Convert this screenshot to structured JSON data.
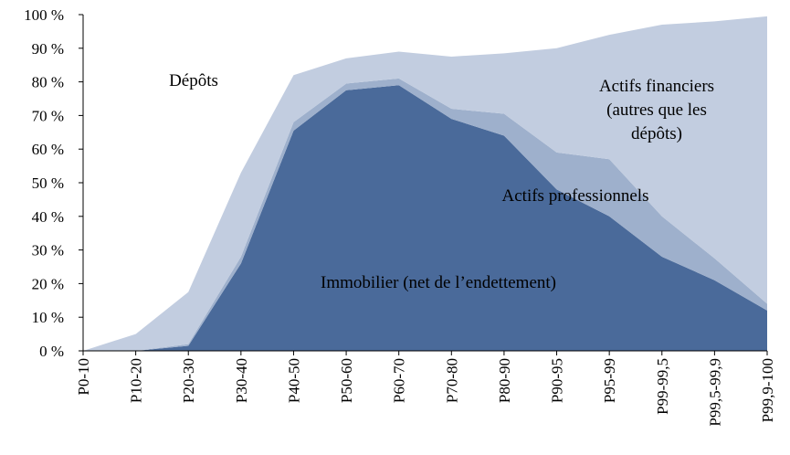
{
  "chart_data": {
    "type": "area",
    "stacked": true,
    "categories": [
      "P0-10",
      "P10-20",
      "P20-30",
      "P30-40",
      "P40-50",
      "P50-60",
      "P60-70",
      "P70-80",
      "P80-90",
      "P90-95",
      "P95-99",
      "P99-99,5",
      "P99,5-99,9",
      "P99,9-100"
    ],
    "ylim": [
      0,
      100
    ],
    "y_ticks": [
      "0 %",
      "10 %",
      "20 %",
      "30 %",
      "40 %",
      "50 %",
      "60 %",
      "70 %",
      "80 %",
      "90 %",
      "100 %"
    ],
    "grid": false,
    "series": [
      {
        "name": "Immobilier (net de l’endettement)",
        "color": "#4a6a9a",
        "values": [
          0,
          0,
          1.5,
          26,
          65.5,
          77.5,
          79,
          69,
          64,
          48,
          40,
          28,
          21,
          12
        ]
      },
      {
        "name": "Actifs professionnels",
        "color": "#9eb0cc",
        "values": [
          0,
          0,
          0.5,
          2,
          2.5,
          2,
          2,
          3,
          6.5,
          11,
          17,
          12,
          6.5,
          2
        ]
      },
      {
        "name": "Dépôts",
        "color": "#c2cde0",
        "values": [
          0,
          5,
          15.5,
          25,
          14,
          7.5,
          8,
          15.5,
          18,
          31,
          37,
          57,
          70.5,
          85.5
        ]
      }
    ],
    "annotations": [
      {
        "lines": [
          "Dépôts"
        ]
      },
      {
        "lines": [
          "Actifs financiers",
          "(autres que les",
          "dépôts)"
        ]
      },
      {
        "lines": [
          "Actifs professionnels"
        ]
      },
      {
        "lines": [
          "Immobilier (net de l’endettement)"
        ]
      }
    ]
  }
}
